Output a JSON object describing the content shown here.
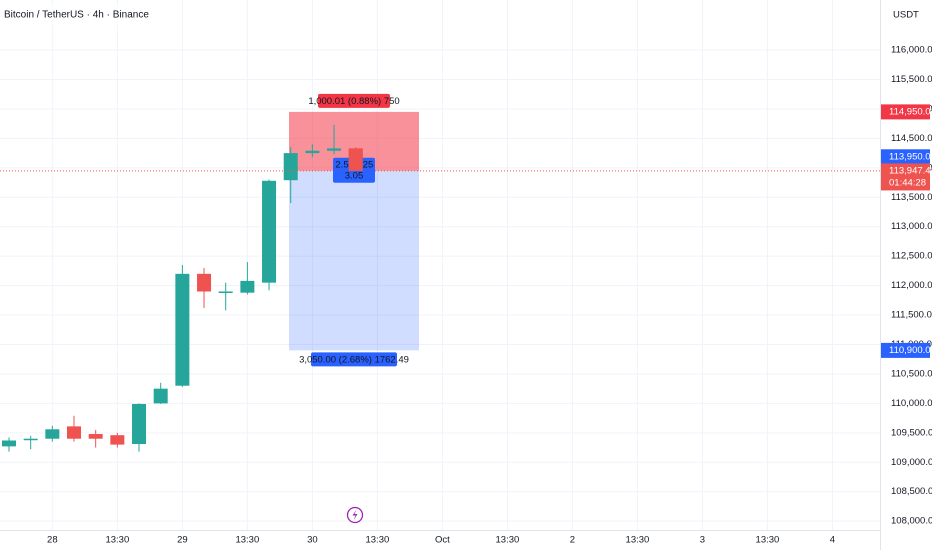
{
  "chart_data": {
    "type": "candlestick",
    "title": "Bitcoin / TetherUS · 4h · Binance",
    "currency": "USDT",
    "categories": [
      null,
      null,
      "28",
      null,
      null,
      "13:30",
      null,
      null,
      "29",
      null,
      null,
      "13:30",
      null,
      null,
      "30",
      null,
      null,
      "13:30",
      null,
      null,
      "Oct",
      null,
      null,
      "13:30",
      null,
      null,
      "2",
      null,
      null,
      "13:30",
      null,
      null,
      "3",
      null,
      null,
      "13:30",
      null,
      null,
      "4",
      null,
      null
    ],
    "open": [
      109270,
      109380,
      109400,
      109610,
      109480,
      109460,
      109310,
      110000,
      110300,
      112200,
      111880,
      111880,
      112050,
      113790,
      114250,
      114290,
      114330,
      null,
      null,
      null,
      null,
      null,
      null,
      null,
      null,
      null,
      null,
      null,
      null,
      null,
      null,
      null,
      null,
      null,
      null,
      null,
      null,
      null,
      null,
      null,
      null
    ],
    "high": [
      109420,
      109450,
      109620,
      109790,
      109550,
      109500,
      110000,
      110350,
      112350,
      112300,
      112050,
      112400,
      113800,
      114350,
      114400,
      114730,
      114350,
      null,
      null,
      null,
      null,
      null,
      null,
      null,
      null,
      null,
      null,
      null,
      null,
      null,
      null,
      null,
      null,
      null,
      null,
      null,
      null,
      null,
      null,
      null,
      null
    ],
    "low": [
      109180,
      109220,
      109350,
      109350,
      109250,
      109250,
      109180,
      109990,
      110280,
      111620,
      111580,
      111850,
      111920,
      113400,
      114180,
      114230,
      113900,
      null,
      null,
      null,
      null,
      null,
      null,
      null,
      null,
      null,
      null,
      null,
      null,
      null,
      null,
      null,
      null,
      null,
      null,
      null,
      null,
      null,
      null,
      null,
      null
    ],
    "close": [
      109370,
      109400,
      109560,
      109400,
      109400,
      109300,
      109990,
      110250,
      112200,
      111900,
      111900,
      112080,
      113780,
      114250,
      114290,
      114330,
      113947.41,
      null,
      null,
      null,
      null,
      null,
      null,
      null,
      null,
      null,
      null,
      null,
      null,
      null,
      null,
      null,
      null,
      null,
      null,
      null,
      null,
      null,
      null,
      null,
      null
    ],
    "up_color": "#26a69a",
    "down_color": "#ef5350",
    "ylim": [
      107850,
      116850
    ],
    "yticks": [
      {
        "value": 108000,
        "label": "108,000.00"
      },
      {
        "value": 108500,
        "label": "108,500.00"
      },
      {
        "value": 109000,
        "label": "109,000.00"
      },
      {
        "value": 109500,
        "label": "109,500.00"
      },
      {
        "value": 110000,
        "label": "110,000.00"
      },
      {
        "value": 110500,
        "label": "110,500.00"
      },
      {
        "value": 111000,
        "label": "111,000.00"
      },
      {
        "value": 111500,
        "label": "111,500.00"
      },
      {
        "value": 112000,
        "label": "112,000.00"
      },
      {
        "value": 112500,
        "label": "112,500.00"
      },
      {
        "value": 113000,
        "label": "113,000.00"
      },
      {
        "value": 113500,
        "label": "113,500.00"
      },
      {
        "value": 114000,
        "label": "114,000.00"
      },
      {
        "value": 114500,
        "label": "114,500.00"
      },
      {
        "value": 115000,
        "label": "115,000.00"
      },
      {
        "value": 115500,
        "label": "115,500.00"
      },
      {
        "value": 116000,
        "label": "116,000.00"
      }
    ],
    "grid": true,
    "last_price": {
      "value": 113947.41,
      "label": "113,947.41",
      "countdown": "01:44:28"
    },
    "position": {
      "stop": {
        "value": 114950.01,
        "label": "114,950.01"
      },
      "entry": {
        "value": 113950,
        "label": "113,950.00"
      },
      "target": {
        "value": 110900,
        "label": "110,900.00"
      },
      "stop_text": "1,000.01 (0.88%) 750",
      "target_text": "3,050.00 (2.68%) 1762.49",
      "ratio_left": "2.5",
      "ratio_right": "25",
      "ratio_bottom": "3.05"
    }
  }
}
